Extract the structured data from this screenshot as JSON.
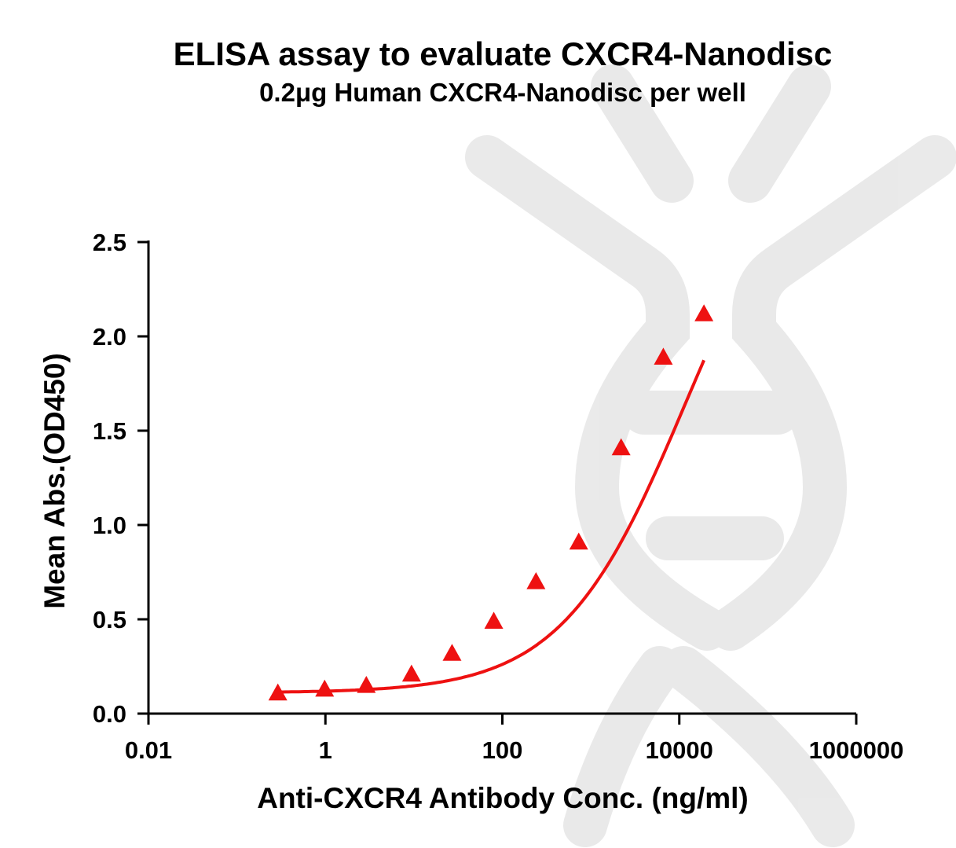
{
  "chart_data": {
    "type": "scatter",
    "title": "ELISA assay to evaluate CXCR4-Nanodisc",
    "subtitle": "0.2μg Human CXCR4-Nanodisc per well",
    "xlabel": "Anti-CXCR4 Antibody Conc. (ng/ml)",
    "ylabel": "Mean Abs.(OD450)",
    "x_scale": "log",
    "xlim": [
      0.01,
      1000000
    ],
    "ylim": [
      0,
      2.5
    ],
    "x_ticks": [
      0.01,
      1,
      100,
      10000,
      1000000
    ],
    "x_tick_labels": [
      "0.01",
      "1",
      "100",
      "10000",
      "1000000"
    ],
    "y_ticks": [
      0,
      0.5,
      1.0,
      1.5,
      2.0,
      2.5
    ],
    "y_tick_labels": [
      "0.0",
      "0.5",
      "1.0",
      "1.5",
      "2.0",
      "2.5"
    ],
    "grid": false,
    "legend": "none",
    "marker_color": "#ee1111",
    "curve_color": "#ee1111",
    "series": [
      {
        "marker": "triangle",
        "points": [
          {
            "x": 0.29,
            "y": 0.11
          },
          {
            "x": 0.98,
            "y": 0.13
          },
          {
            "x": 2.9,
            "y": 0.15
          },
          {
            "x": 9.4,
            "y": 0.21
          },
          {
            "x": 27,
            "y": 0.32
          },
          {
            "x": 80,
            "y": 0.49
          },
          {
            "x": 240,
            "y": 0.7
          },
          {
            "x": 730,
            "y": 0.91
          },
          {
            "x": 2200,
            "y": 1.41
          },
          {
            "x": 6600,
            "y": 1.89
          },
          {
            "x": 19000,
            "y": 2.12
          }
        ]
      }
    ],
    "fit_curve": {
      "type": "4PL",
      "bottom": 0.11,
      "top": 3.2,
      "ec50": 12000,
      "hill": 0.62,
      "x_range": [
        0.29,
        19000
      ]
    }
  }
}
